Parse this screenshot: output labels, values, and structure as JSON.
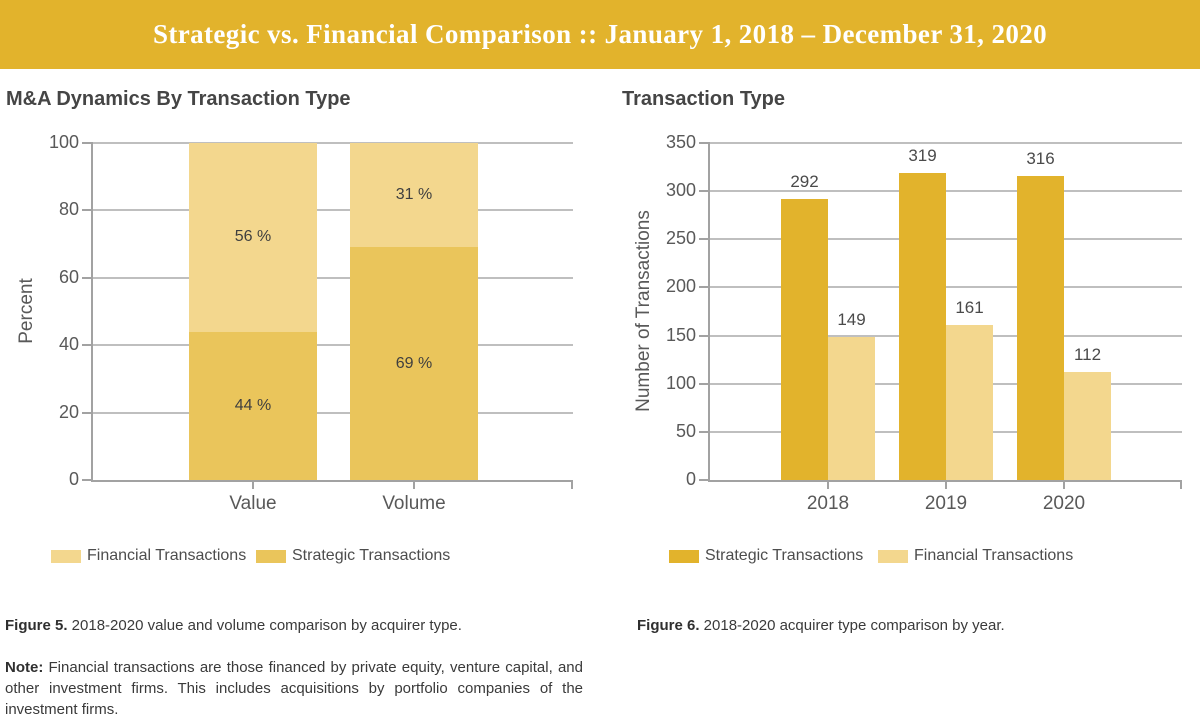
{
  "banner": {
    "title": "Strategic vs. Financial Comparison :: January 1, 2018 – December 31, 2020",
    "background": "#E2B32C",
    "text_color": "#FFFFFF"
  },
  "colors": {
    "strategic_gold_dark": "#E2B32C",
    "strategic_gold_light": "#EAC55B",
    "financial_tan": "#F3D78E",
    "gridline": "#BFBFBF",
    "axis": "#A2A2A2",
    "label_gray": "#595959"
  },
  "chart_data": [
    {
      "type": "bar",
      "variant": "stacked-percent",
      "title": "M&A Dynamics By Transaction Type",
      "xlabel": "",
      "ylabel": "Percent",
      "ylim": [
        0,
        100
      ],
      "yticks": [
        0,
        20,
        40,
        60,
        80,
        100
      ],
      "grid": true,
      "categories": [
        "Value",
        "Volume"
      ],
      "series": [
        {
          "name": "Strategic Transactions",
          "values": [
            44,
            69
          ],
          "labels": [
            "44 %",
            "69 %"
          ],
          "color": "#EAC55B"
        },
        {
          "name": "Financial Transactions",
          "values": [
            56,
            31
          ],
          "labels": [
            "56 %",
            "31 %"
          ],
          "color": "#F3D78E"
        }
      ],
      "legend": [
        {
          "label": "Financial Transactions",
          "color": "#F3D78E"
        },
        {
          "label": "Strategic Transactions",
          "color": "#EAC55B"
        }
      ],
      "legend_position": "bottom"
    },
    {
      "type": "bar",
      "variant": "grouped",
      "title": "Transaction Type",
      "xlabel": "",
      "ylabel": "Number of Transactions",
      "ylim": [
        0,
        350
      ],
      "yticks": [
        0,
        50,
        100,
        150,
        200,
        250,
        300,
        350
      ],
      "grid": true,
      "categories": [
        "2018",
        "2019",
        "2020"
      ],
      "series": [
        {
          "name": "Strategic Transactions",
          "values": [
            292,
            319,
            316
          ],
          "color": "#E2B32C"
        },
        {
          "name": "Financial Transactions",
          "values": [
            149,
            161,
            112
          ],
          "color": "#F3D78E"
        }
      ],
      "legend": [
        {
          "label": "Strategic Transactions",
          "color": "#E2B32C"
        },
        {
          "label": "Financial Transactions",
          "color": "#F3D78E"
        }
      ],
      "legend_position": "bottom"
    }
  ],
  "captions": {
    "figure5_label": "Figure 5.",
    "figure5_text": " 2018-2020 value and volume comparison by acquirer type.",
    "figure6_label": "Figure 6.",
    "figure6_text": " 2018-2020 acquirer type comparison by year.",
    "note_label": "Note:",
    "note_text": " Financial transactions are those financed by private equity, venture capital, and other investment firms. This includes acquisitions by portfolio companies of the investment firms."
  }
}
